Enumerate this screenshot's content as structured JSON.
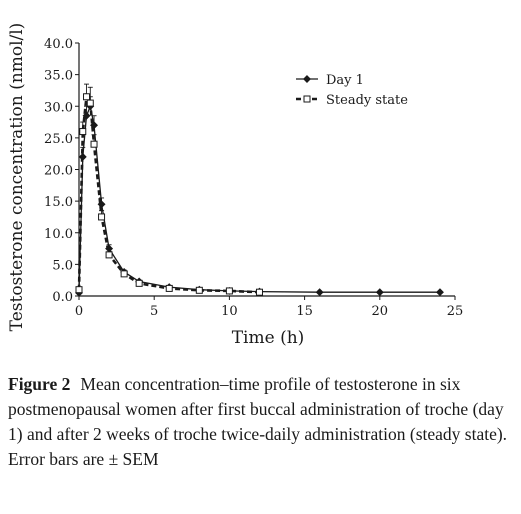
{
  "chart_data": {
    "type": "line",
    "xlabel": "Time (h)",
    "ylabel": "Testosterone concentration (nmol/l)",
    "xlim": [
      0,
      25
    ],
    "ylim": [
      0,
      40
    ],
    "x_ticks": [
      "0",
      "5",
      "10",
      "15",
      "20",
      "25"
    ],
    "y_ticks": [
      "0.0",
      "5.0",
      "10.0",
      "15.0",
      "20.0",
      "25.0",
      "30.0",
      "35.0",
      "40.0"
    ],
    "grid": false,
    "legend_position": "top-right",
    "series": [
      {
        "name": "Day 1",
        "marker": "diamond-filled",
        "line": "solid",
        "color": "#1a1a1a",
        "x": [
          0,
          0.25,
          0.5,
          0.75,
          1,
          1.5,
          2,
          3,
          4,
          6,
          8,
          10,
          12,
          16,
          20,
          24
        ],
        "y": [
          0.5,
          22.0,
          28.5,
          30.0,
          27.0,
          14.5,
          7.5,
          3.8,
          2.3,
          1.4,
          1.0,
          0.8,
          0.7,
          0.6,
          0.6,
          0.6
        ],
        "error": [
          0,
          1.5,
          1.5,
          1.5,
          1.5,
          1.0,
          0.6,
          0.3,
          0.2,
          0.1,
          0.1,
          0.1,
          0.1,
          0.1,
          0.1,
          0.1
        ]
      },
      {
        "name": "Steady state",
        "marker": "square-open",
        "line": "dashed",
        "color": "#1a1a1a",
        "x": [
          0,
          0.25,
          0.5,
          0.75,
          1,
          1.5,
          2,
          3,
          4,
          6,
          8,
          10,
          12
        ],
        "y": [
          1.0,
          26.0,
          31.5,
          30.5,
          24.0,
          12.5,
          6.5,
          3.5,
          2.0,
          1.2,
          0.9,
          0.8,
          0.6
        ],
        "error": [
          0,
          1.5,
          2.0,
          2.5,
          1.5,
          1.0,
          0.5,
          0.3,
          0.2,
          0.1,
          0.1,
          0.1,
          0.1
        ]
      }
    ]
  },
  "caption": {
    "label": "Figure 2",
    "text": "Mean concentration–time profile of testosterone in six postmenopausal women after first buccal administration of troche (day 1) and after 2 weeks of troche twice-daily administration (steady state). Error bars are ± SEM"
  }
}
